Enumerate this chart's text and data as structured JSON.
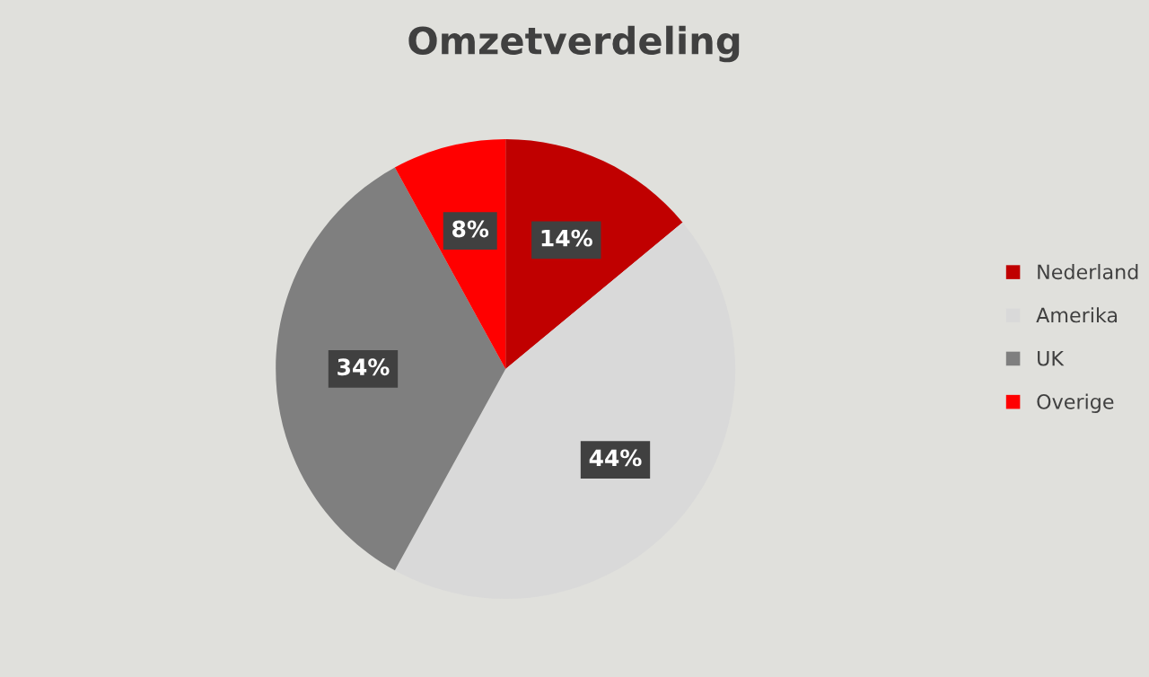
{
  "chart_data": {
    "type": "pie",
    "title": "Omzetverdeling",
    "categories": [
      "Nederland",
      "Amerika",
      "UK",
      "Overige"
    ],
    "values": [
      14,
      44,
      34,
      8
    ],
    "colors": [
      "#c00000",
      "#d9d9d9",
      "#7f7f7f",
      "#ff0000"
    ],
    "value_labels": [
      "14%",
      "44%",
      "34%",
      "8%"
    ],
    "legend": "right"
  }
}
